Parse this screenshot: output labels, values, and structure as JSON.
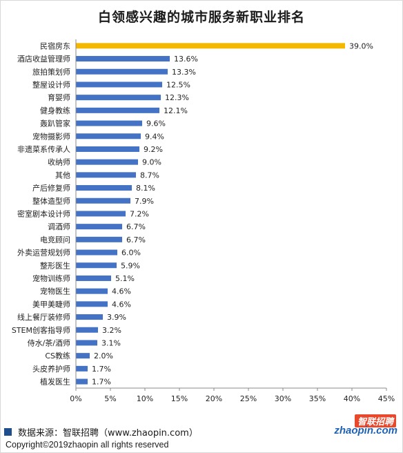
{
  "title": "白领感兴趣的城市服务新职业排名",
  "source_text": "数据来源：智联招聘（www.zhaopin.com）",
  "copyright_text": "Copyright©2019zhaopin all rights reserved",
  "logo": {
    "cn": "智联招聘",
    "en": "zhaopin.com"
  },
  "colors": {
    "highlight": "#F5B800",
    "bar": "#4472C4",
    "axis": "#888888"
  },
  "chart_data": {
    "type": "bar",
    "orientation": "horizontal",
    "title": "白领感兴趣的城市服务新职业排名",
    "xlabel": "",
    "ylabel": "",
    "xlim": [
      0,
      45
    ],
    "ticks": [
      "0%",
      "5%",
      "10%",
      "15%",
      "20%",
      "25%",
      "30%",
      "35%",
      "40%",
      "45%"
    ],
    "tick_values": [
      0,
      5,
      10,
      15,
      20,
      25,
      30,
      35,
      40,
      45
    ],
    "grid": false,
    "legend": "none",
    "categories": [
      "民宿房东",
      "酒店收益管理师",
      "旅拍策划师",
      "整屋设计师",
      "育婴师",
      "健身教练",
      "轰趴管家",
      "宠物摄影师",
      "非遗菜系传承人",
      "收纳师",
      "其他",
      "产后修复师",
      "整体造型师",
      "密室剧本设计师",
      "调酒师",
      "电竞顾问",
      "外卖运营规划师",
      "整形医生",
      "宠物训练师",
      "宠物医生",
      "美甲美睫师",
      "线上餐厅装修师",
      "STEM创客指导师",
      "侍水/茶/酒师",
      "CS教练",
      "头皮养护师",
      "植发医生"
    ],
    "values": [
      39.0,
      13.6,
      13.3,
      12.5,
      12.3,
      12.1,
      9.6,
      9.4,
      9.2,
      9.0,
      8.7,
      8.1,
      7.9,
      7.2,
      6.7,
      6.7,
      6.0,
      5.9,
      5.1,
      4.6,
      4.6,
      3.9,
      3.2,
      3.1,
      2.0,
      1.7,
      1.7
    ],
    "labels": [
      "39.0%",
      "13.6%",
      "13.3%",
      "12.5%",
      "12.3%",
      "12.1%",
      "9.6%",
      "9.4%",
      "9.2%",
      "9.0%",
      "8.7%",
      "8.1%",
      "7.9%",
      "7.2%",
      "6.7%",
      "6.7%",
      "6.0%",
      "5.9%",
      "5.1%",
      "4.6%",
      "4.6%",
      "3.9%",
      "3.2%",
      "3.1%",
      "2.0%",
      "1.7%",
      "1.7%"
    ],
    "highlight_index": 0
  }
}
